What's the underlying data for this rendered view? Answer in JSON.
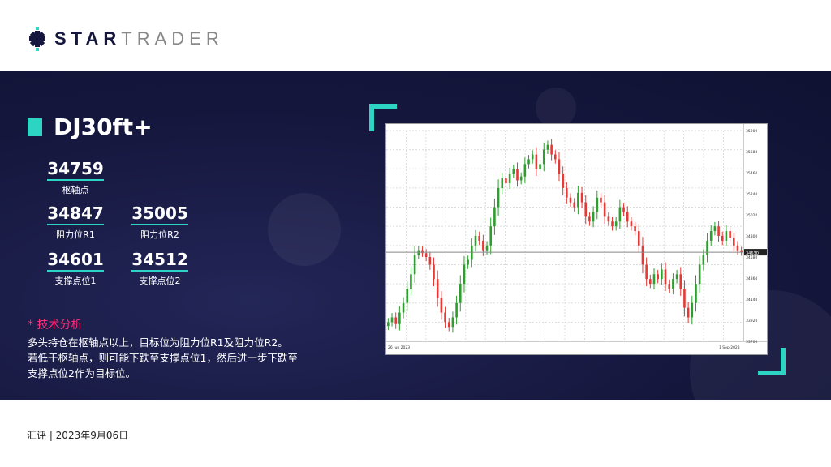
{
  "brand": {
    "logo_bold": "STAR",
    "logo_light": "TRADER"
  },
  "instrument": "DJ30ft+",
  "levels": {
    "pivot": {
      "value": "34759",
      "label": "枢轴点"
    },
    "r1": {
      "value": "34847",
      "label": "阻力位R1"
    },
    "r2": {
      "value": "35005",
      "label": "阻力位R2"
    },
    "s1": {
      "value": "34601",
      "label": "支撑点位1"
    },
    "s2": {
      "value": "34512",
      "label": "支撑点位2"
    }
  },
  "analysis": {
    "heading": "* 技术分析",
    "lines": [
      "多头持仓在枢轴点以上，目标位为阻力位R1及阻力位R2。",
      "若低于枢轴点，则可能下跌至支撑点位1，然后进一步下跌至",
      "支撑点位2作为目标位。"
    ]
  },
  "footer": "汇评 | 2023年9月06日",
  "colors": {
    "accent": "#2dd4c4",
    "heading": "#ff2d7a",
    "band": "#14163c",
    "up": "#2e9e2e",
    "down": "#e53935"
  },
  "chart_data": {
    "type": "candlestick",
    "x_range": [
      "26 Jun 2023",
      "1 Sep 2023"
    ],
    "current_price": 34630,
    "ylim": [
      33700,
      35900
    ],
    "closes": [
      33900,
      33950,
      33880,
      34000,
      34100,
      34250,
      34400,
      34600,
      34650,
      34620,
      34580,
      34500,
      34350,
      34150,
      34000,
      33900,
      33850,
      33950,
      34100,
      34300,
      34500,
      34550,
      34700,
      34800,
      34750,
      34650,
      34700,
      34900,
      35100,
      35300,
      35400,
      35350,
      35450,
      35500,
      35380,
      35420,
      35550,
      35600,
      35650,
      35500,
      35550,
      35700,
      35750,
      35650,
      35600,
      35450,
      35300,
      35200,
      35150,
      35100,
      35250,
      35150,
      35000,
      34950,
      35050,
      35200,
      35150,
      35000,
      34950,
      34900,
      34950,
      35100,
      35050,
      34950,
      34900,
      34850,
      34700,
      34500,
      34350,
      34300,
      34400,
      34350,
      34450,
      34300,
      34250,
      34350,
      34400,
      34250,
      34050,
      33950,
      34100,
      34300,
      34500,
      34600,
      34750,
      34850,
      34900,
      34800,
      34750,
      34850,
      34780,
      34700,
      34650,
      34630
    ]
  }
}
